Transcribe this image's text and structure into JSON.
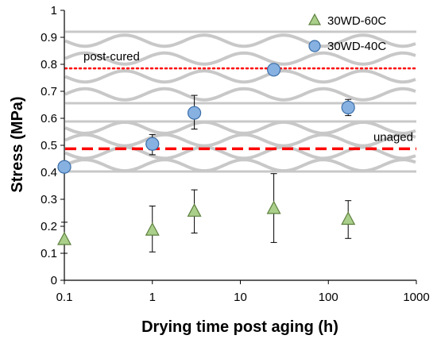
{
  "chart_data": {
    "type": "scatter",
    "title": "",
    "xlabel": "Drying time post aging (h)",
    "ylabel": "Stress (MPa)",
    "x_scale": "log",
    "xlim": [
      0.1,
      1000
    ],
    "ylim": [
      0,
      1
    ],
    "x_ticks": [
      "0.1",
      "1",
      "10",
      "100",
      "1000"
    ],
    "y_ticks": [
      "0",
      "0.1",
      "0.2",
      "0.3",
      "0.4",
      "0.5",
      "0.6",
      "0.7",
      "0.8",
      "0.9",
      "1"
    ],
    "grid": false,
    "legend_position": "top-right",
    "series": [
      {
        "name": "30WD-60C",
        "marker": "triangle",
        "color": "#a9cf8a",
        "edge_color": "#5d7f3e",
        "x": [
          0.1,
          1,
          3,
          24,
          168
        ],
        "y": [
          0.15,
          0.185,
          0.255,
          0.265,
          0.225
        ],
        "err_low": [
          0.05,
          0.08,
          0.08,
          0.125,
          0.07
        ],
        "err_high": [
          0.065,
          0.09,
          0.08,
          0.13,
          0.07
        ]
      },
      {
        "name": "30WD-40C",
        "marker": "circle",
        "color": "#86b1e1",
        "edge_color": "#3b6ea8",
        "x": [
          0.1,
          1,
          3,
          24,
          168
        ],
        "y": [
          0.42,
          0.505,
          0.62,
          0.78,
          0.64
        ],
        "err_low": [
          0.0,
          0.04,
          0.06,
          0.015,
          0.03
        ],
        "err_high": [
          0.0,
          0.035,
          0.065,
          0.015,
          0.03
        ]
      }
    ],
    "reference_lines": [
      {
        "label": "post-cured",
        "y": 0.785,
        "style": "dotted",
        "color": "#ff0000"
      },
      {
        "label": "unaged",
        "y": 0.487,
        "style": "dashed",
        "color": "#ff0000"
      }
    ],
    "background_colors": {
      "wave": "#c8c8c8",
      "axis": "#000000"
    }
  }
}
